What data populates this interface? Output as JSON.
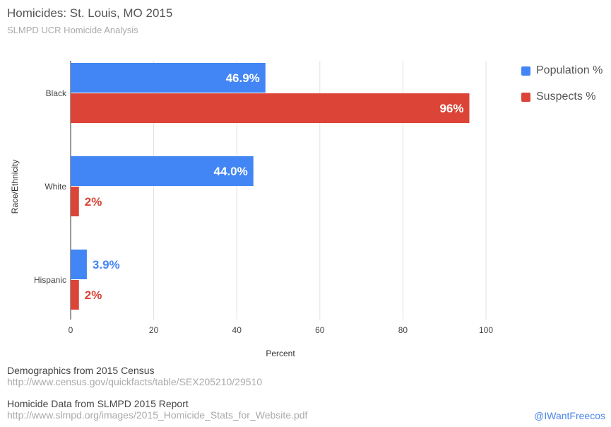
{
  "title": "Homicides: St. Louis, MO 2015",
  "subtitle": "SLMPD UCR Homicide Analysis",
  "chart_data": {
    "type": "bar",
    "orientation": "horizontal",
    "categories": [
      "Black",
      "White",
      "Hispanic"
    ],
    "series": [
      {
        "name": "Population %",
        "values": [
          46.9,
          44.0,
          3.9
        ],
        "labels": [
          "46.9%",
          "44.0%",
          "3.9%"
        ],
        "color": "#4285f4"
      },
      {
        "name": "Suspects %",
        "values": [
          96,
          2,
          2
        ],
        "labels": [
          "96%",
          "2%",
          "2%"
        ],
        "color": "#db4437"
      }
    ],
    "xlabel": "Percent",
    "ylabel": "Race/Ethnicity",
    "xlim": [
      0,
      100
    ],
    "xticks": [
      0,
      20,
      40,
      60,
      80,
      100
    ],
    "grid": true,
    "legend_position": "top-right"
  },
  "sources": [
    {
      "heading": "Demographics from 2015 Census",
      "url": "http://www.census.gov/quickfacts/table/SEX205210/29510"
    },
    {
      "heading": "Homicide Data from SLMPD 2015 Report",
      "url": "http://www.slmpd.org/images/2015_Homicide_Stats_for_Website.pdf"
    }
  ],
  "credit": "@IWantFreecos",
  "colors": {
    "population": "#4285f4",
    "suspects": "#db4437",
    "grid": "#e0e0e0",
    "axis": "#333333"
  }
}
